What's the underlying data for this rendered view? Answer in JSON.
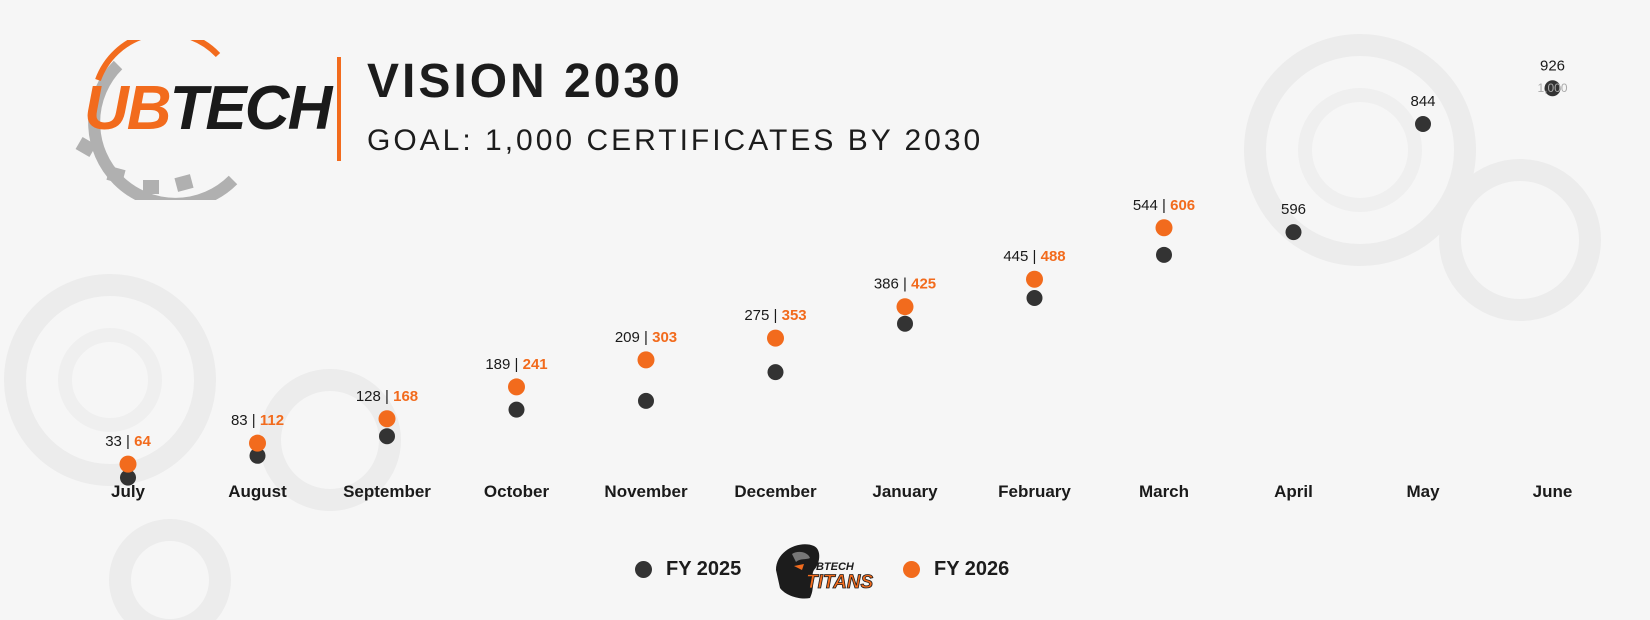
{
  "header": {
    "logo_ub": "UB",
    "logo_tech": "TECH",
    "title": "VISION 2030",
    "subtitle": "GOAL: 1,000 CERTIFICATES BY 2030"
  },
  "colors": {
    "fy2025": "#333333",
    "fy2026": "#f26b1d",
    "accent": "#f26b1d",
    "goal": "#aaaaaa"
  },
  "legend": {
    "fy2025": "FY 2025",
    "fy2026": "FY 2026",
    "mascot_text_top": "UBTECH",
    "mascot_text_bottom": "TITANS"
  },
  "chart_data": {
    "type": "scatter",
    "title": "",
    "xlabel": "",
    "ylabel": "",
    "categories": [
      "July",
      "August",
      "September",
      "October",
      "November",
      "December",
      "January",
      "February",
      "March",
      "April",
      "May",
      "June"
    ],
    "ylim": [
      0,
      1000
    ],
    "grid": false,
    "legend_position": "bottom-center",
    "series": [
      {
        "name": "FY 2025",
        "values": [
          33,
          83,
          128,
          189,
          209,
          275,
          386,
          445,
          544,
          596,
          844,
          926
        ]
      },
      {
        "name": "FY 2026",
        "values": [
          64,
          112,
          168,
          241,
          303,
          353,
          425,
          488,
          606,
          null,
          null,
          null
        ]
      }
    ],
    "goal_label": "1,000",
    "goal_value": 1000
  }
}
